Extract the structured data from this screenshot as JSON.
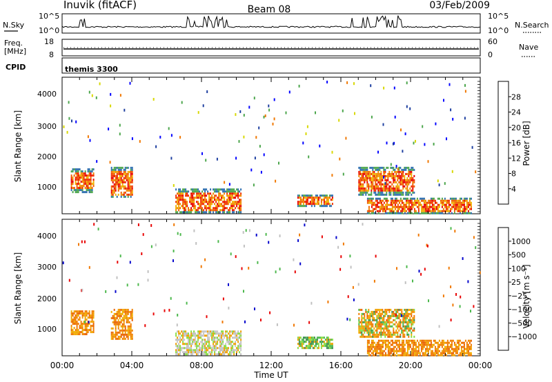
{
  "header": {
    "station": "Inuvik (fitACF)",
    "beam": "Beam 08",
    "date": "03/Feb/2009"
  },
  "nsky_panel": {
    "label": "N.Sky",
    "right_label": "N.Search",
    "ticks_left": [
      "10^5",
      "10^0"
    ],
    "ticks_right": [
      "10^5",
      "10^0"
    ]
  },
  "freq_panel": {
    "label_top": "Freq.",
    "label_bottom": "[MHz]",
    "ticks_left": [
      "18",
      "8"
    ],
    "ticks_right": [
      "60",
      "0"
    ],
    "right_label": "Nave"
  },
  "cpid_panel": {
    "label": "CPID",
    "program": "themis 3300"
  },
  "power_panel": {
    "ylabel": "Slant Range [km]",
    "yticks": [
      "4000",
      "3000",
      "2000",
      "1000"
    ],
    "colorbar": {
      "label": "Power [dB]",
      "ticks": [
        "28",
        "24",
        "20",
        "16",
        "12",
        "8",
        "4"
      ],
      "colors": [
        "#0000ff",
        "#1e3fa0",
        "#2f6fb0",
        "#3c8c50",
        "#4ca64c",
        "#9ccc2c",
        "#d8d800",
        "#f0a000",
        "#f07800",
        "#f04000",
        "#e80000"
      ]
    }
  },
  "velocity_panel": {
    "ylabel": "Slant Range [km]",
    "yticks": [
      "4000",
      "3000",
      "2000",
      "1000"
    ],
    "colorbar": {
      "label": "Velocity [m s⁻¹]",
      "ticks": [
        "1000",
        "500",
        "100",
        "25",
        "−25",
        "−100",
        "−500",
        "−1000"
      ],
      "colors": [
        "#e80000",
        "#f04000",
        "#f07800",
        "#f0a000",
        "#f0c000",
        "#c0c0c0",
        "#c0c0c0",
        "#88dd44",
        "#4cb84c",
        "#3c8c50",
        "#2f6fb0",
        "#1e3fa0",
        "#0000cc"
      ]
    }
  },
  "xaxis": {
    "label": "Time UT",
    "ticks": [
      "00:00",
      "04:00",
      "08:00",
      "12:00",
      "16:00",
      "20:00",
      "00:00"
    ]
  },
  "chart_data": {
    "type": "heatmap",
    "title": "Inuvik (fitACF) Beam 08 03/Feb/2009",
    "x_range_hours": [
      0,
      24
    ],
    "y_range_km": [
      180,
      4600
    ],
    "panels": [
      "Power [dB]",
      "Velocity [m s⁻¹]"
    ],
    "scatter_regions": [
      {
        "start_h": 0.5,
        "end_h": 1.8,
        "range_km": [
          900,
          1650
        ],
        "power": "red-orange",
        "velocity": "orange"
      },
      {
        "start_h": 2.8,
        "end_h": 4.0,
        "range_km": [
          700,
          1700
        ],
        "power": "red-orange",
        "velocity": "orange"
      },
      {
        "start_h": 6.5,
        "end_h": 10.3,
        "range_km": [
          200,
          1000
        ],
        "power": "red-orange",
        "velocity": "grey-orange-green"
      },
      {
        "start_h": 13.5,
        "end_h": 15.5,
        "range_km": [
          450,
          800
        ],
        "power": "orange-green",
        "velocity": "green"
      },
      {
        "start_h": 17.0,
        "end_h": 20.2,
        "range_km": [
          800,
          1700
        ],
        "power": "red-orange",
        "velocity": "orange-green"
      },
      {
        "start_h": 17.5,
        "end_h": 23.5,
        "range_km": [
          200,
          700
        ],
        "power": "red",
        "velocity": "orange"
      }
    ]
  }
}
